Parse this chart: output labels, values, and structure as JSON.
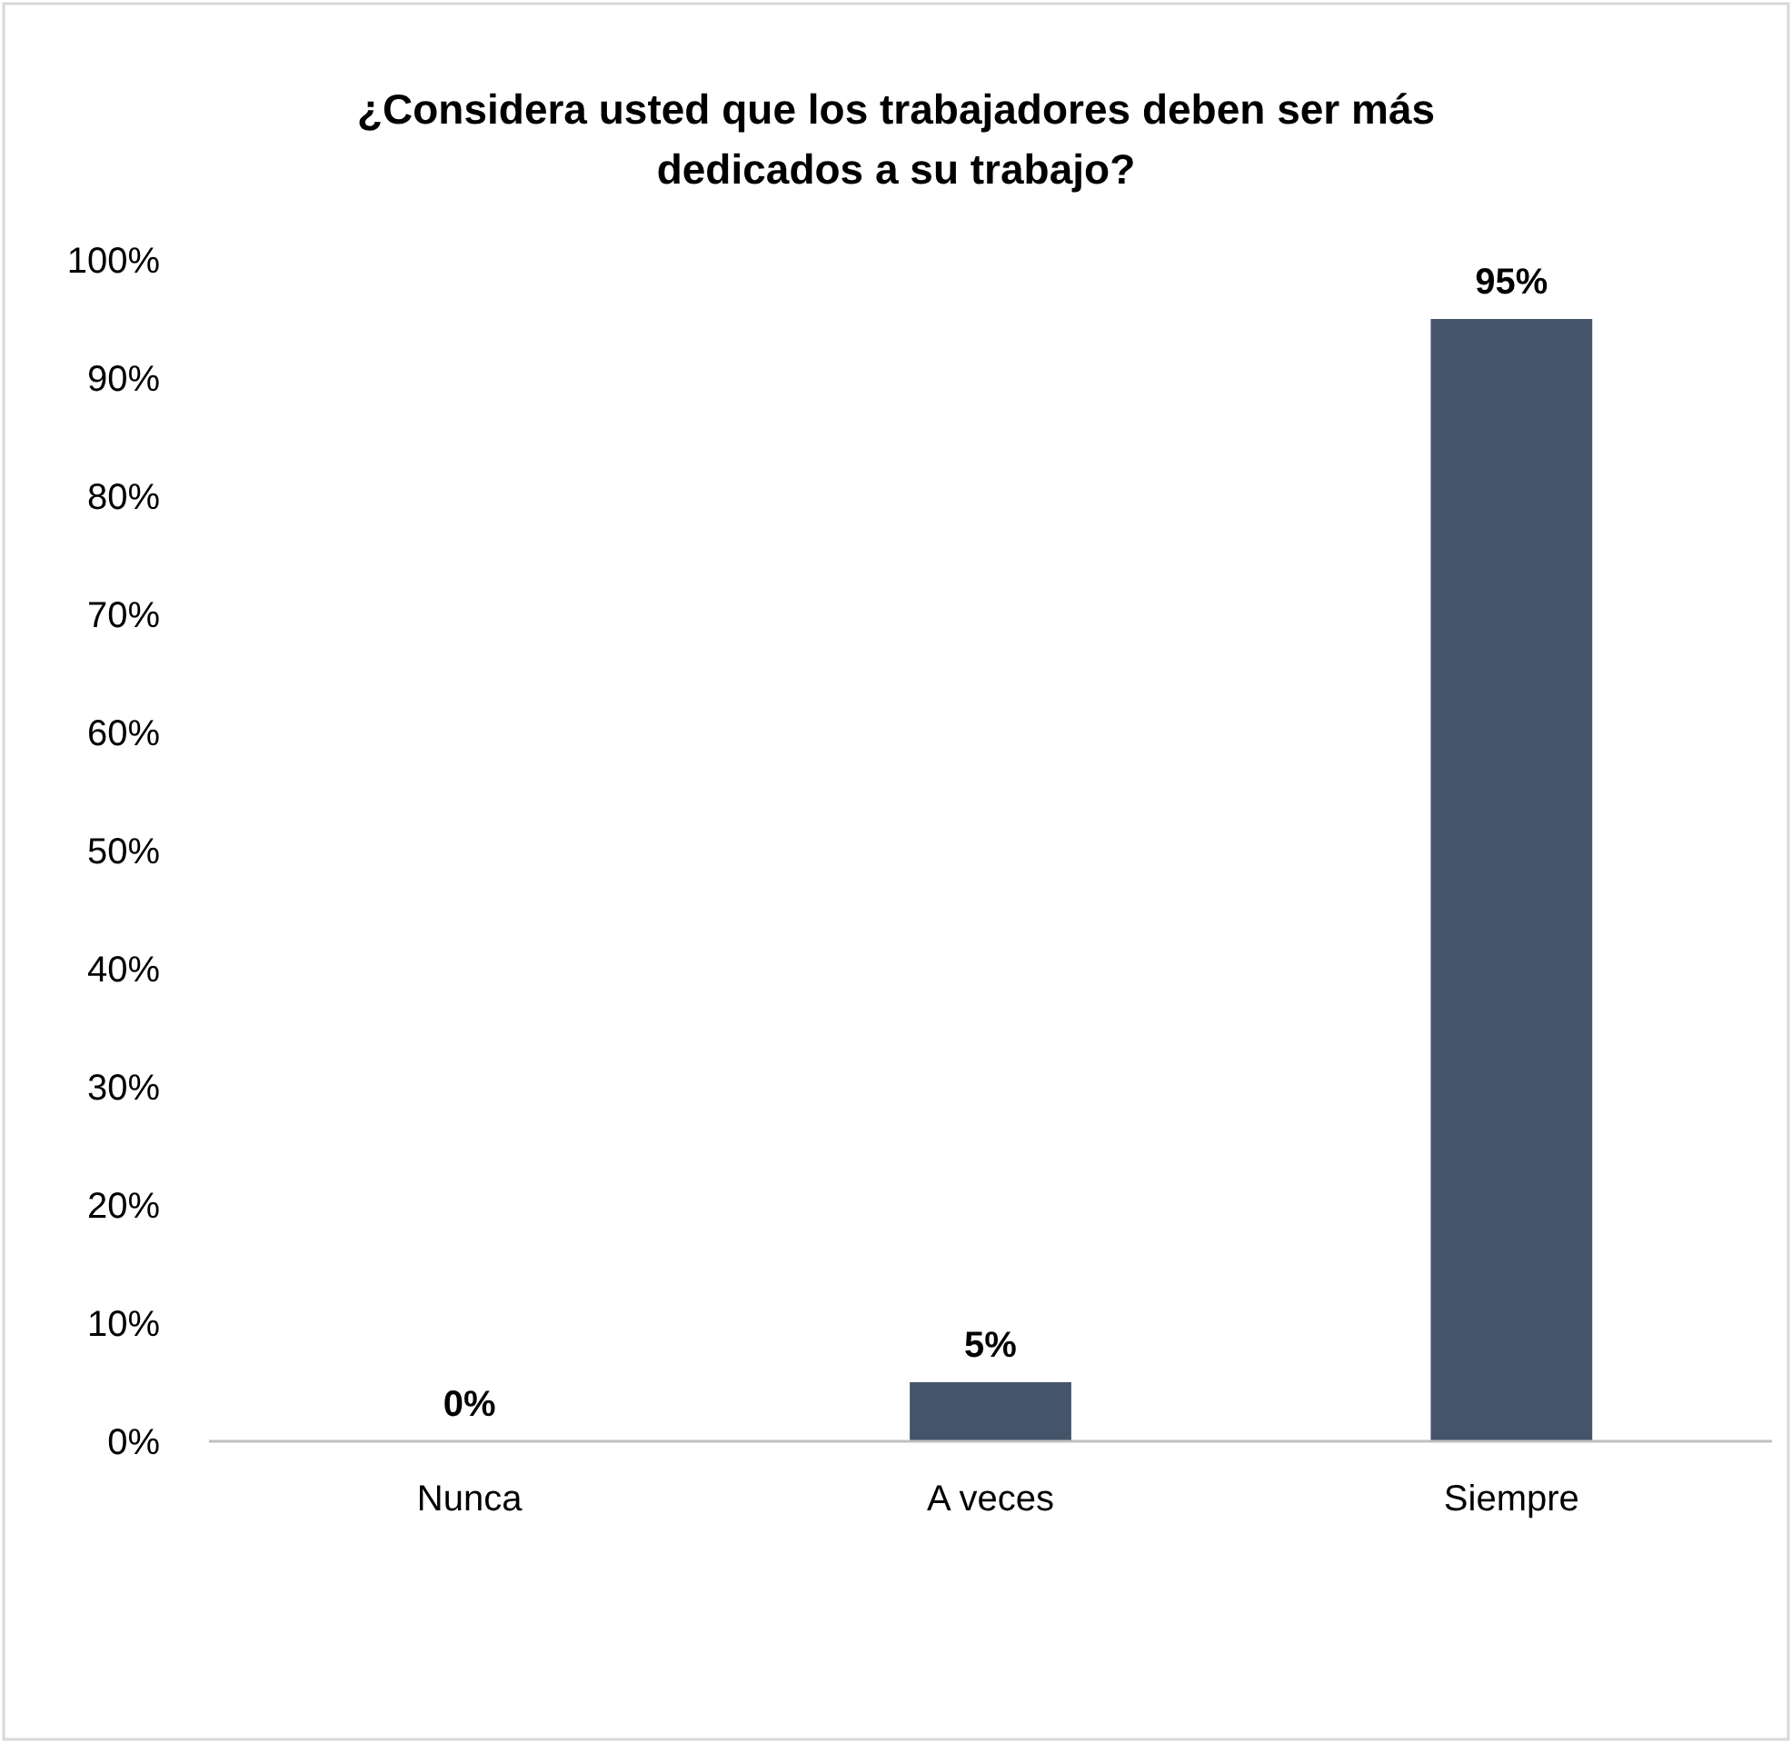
{
  "chart_data": {
    "type": "bar",
    "title": "¿Considera usted que los trabajadores deben ser más dedicados a su trabajo?",
    "categories": [
      "Nunca",
      "A veces",
      "Siempre"
    ],
    "values": [
      0,
      5,
      95
    ],
    "color": "#44546a",
    "ylim": [
      0,
      100
    ],
    "yticks": [
      {
        "value": 0,
        "label": "0%"
      },
      {
        "value": 10,
        "label": "10%"
      },
      {
        "value": 20,
        "label": "20%"
      },
      {
        "value": 30,
        "label": "30%"
      },
      {
        "value": 40,
        "label": "40%"
      },
      {
        "value": 50,
        "label": "50%"
      },
      {
        "value": 60,
        "label": "60%"
      },
      {
        "value": 70,
        "label": "70%"
      },
      {
        "value": 80,
        "label": "80%"
      },
      {
        "value": 90,
        "label": "90%"
      },
      {
        "value": 100,
        "label": "100%"
      }
    ],
    "value_labels": [
      "0%",
      "5%",
      "95%"
    ]
  }
}
